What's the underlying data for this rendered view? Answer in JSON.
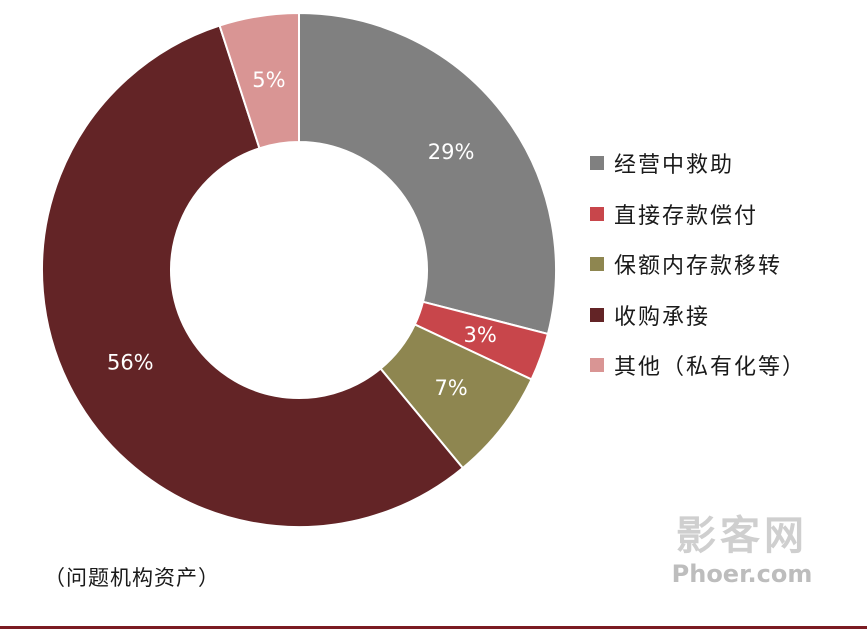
{
  "chart_data": {
    "type": "pie",
    "subtype": "donut",
    "slices": [
      {
        "label": "经营中救助",
        "value": 29,
        "display": "29%",
        "color": "#808080"
      },
      {
        "label": "直接存款偿付",
        "value": 3,
        "display": "3%",
        "color": "#c8464b"
      },
      {
        "label": "保额内存款移转",
        "value": 7,
        "display": "7%",
        "color": "#8e8650"
      },
      {
        "label": "收购承接",
        "value": 56,
        "display": "56%",
        "color": "#632426"
      },
      {
        "label": "其他（私有化等）",
        "value": 5,
        "display": "5%",
        "color": "#d99594"
      }
    ],
    "legend_position": "right",
    "start_direction": "top",
    "order": "clockwise"
  },
  "note": "（问题机构资产）",
  "watermark": {
    "cn": "影客网",
    "en": "Phoer.com"
  },
  "colors": {
    "rule": "#7b1b22",
    "label_text": "#ffffff"
  }
}
